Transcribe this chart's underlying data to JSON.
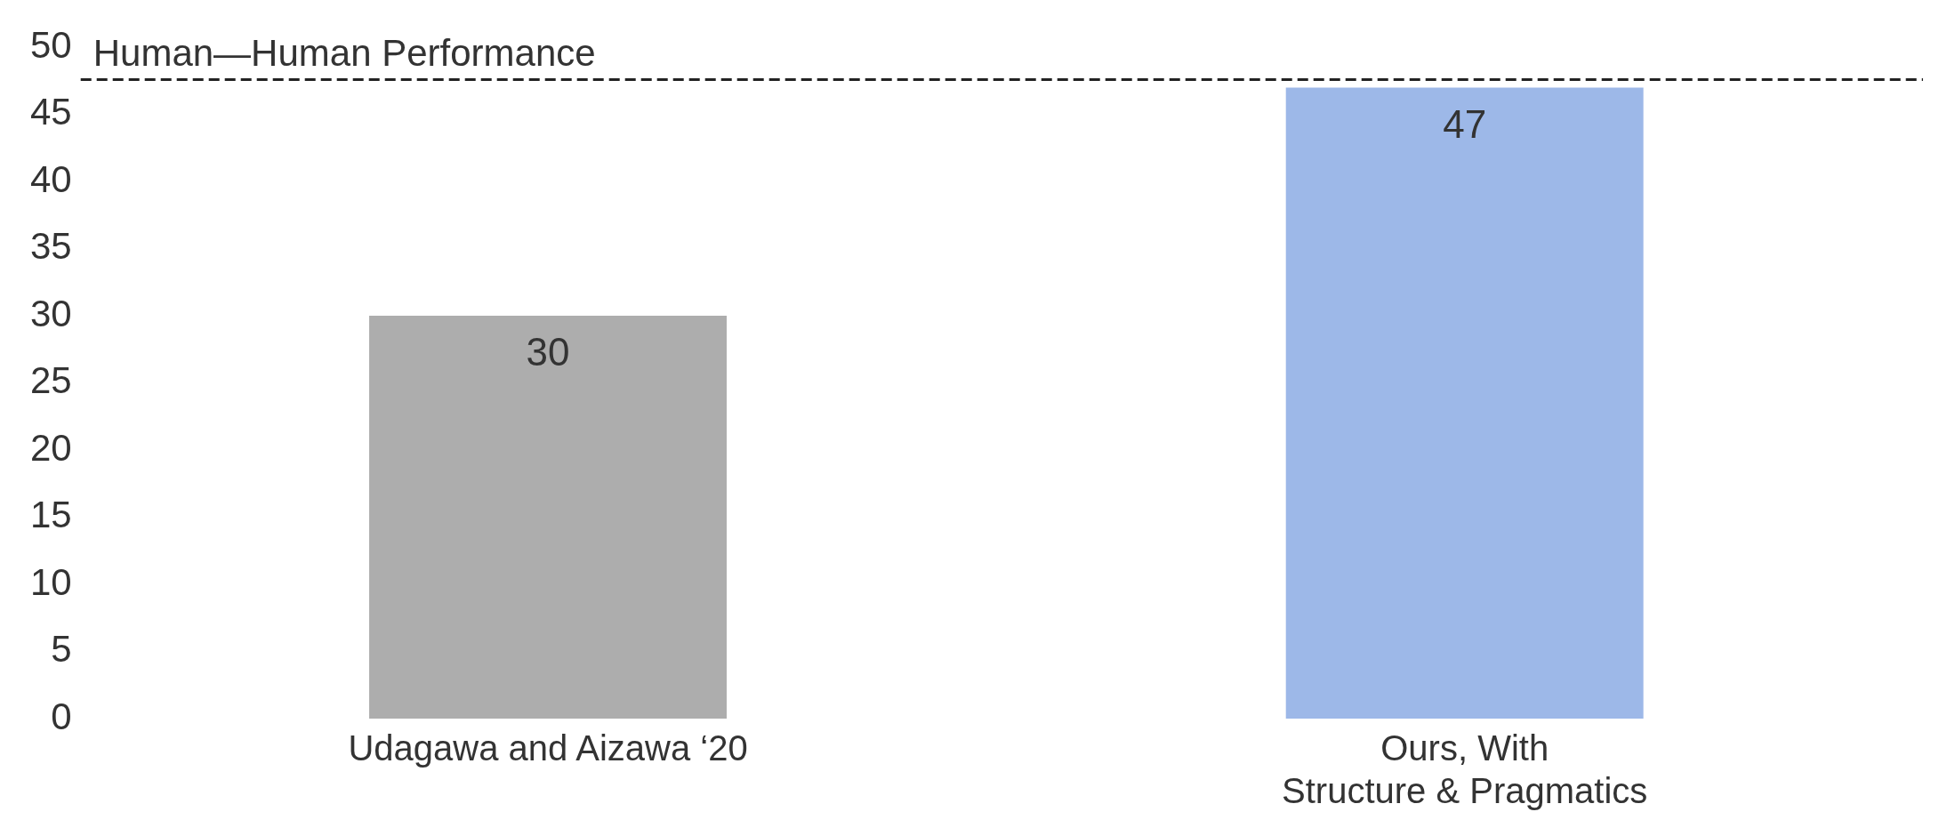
{
  "chart_data": {
    "type": "bar",
    "categories": [
      "Udagawa and Aizawa ‘20",
      "Ours, With\nStructure & Pragmatics"
    ],
    "values": [
      30,
      47
    ],
    "colors": [
      "#adadad",
      "#9db8e8"
    ],
    "ylim": [
      0,
      50
    ],
    "yticks": [
      0,
      5,
      10,
      15,
      20,
      25,
      30,
      35,
      40,
      45,
      50
    ],
    "grid": false,
    "legend": false,
    "data_labels": true,
    "ref_lines": [
      {
        "axis": "y",
        "value": 47.6,
        "label": "Human—Human Performance",
        "color": "#222222",
        "line_style": "dashed"
      }
    ]
  }
}
